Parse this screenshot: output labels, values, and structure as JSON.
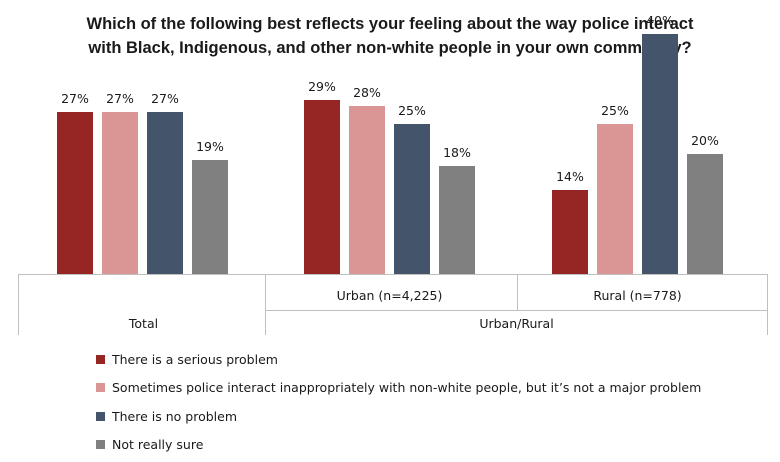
{
  "chart_data": {
    "type": "bar",
    "title_lines": [
      "Which of the following best reflects your feeling about the way police interact",
      "with Black, Indigenous, and other non-white people in your own community?"
    ],
    "groups": [
      {
        "label": "Total",
        "parent": "Total"
      },
      {
        "label": "Urban (n=4,225)",
        "parent": "Urban/Rural"
      },
      {
        "label": "Rural (n=778)",
        "parent": "Urban/Rural"
      }
    ],
    "parent_groups": [
      "Total",
      "Urban/Rural"
    ],
    "series": [
      {
        "name": "There is a serious problem",
        "color": "#952624",
        "values": [
          27,
          29,
          14
        ]
      },
      {
        "name": "Sometimes police interact inappropriately with non-white people, but it’s not a major problem",
        "color": "#DA9695",
        "values": [
          27,
          28,
          25
        ]
      },
      {
        "name": "There is no problem",
        "color": "#44546A",
        "values": [
          27,
          25,
          40
        ]
      },
      {
        "name": "Not really sure",
        "color": "#808080",
        "values": [
          19,
          18,
          20
        ]
      }
    ],
    "value_format": "{v}%",
    "ylim": [
      0,
      45
    ],
    "grid": false,
    "legend_position": "bottom-left"
  }
}
